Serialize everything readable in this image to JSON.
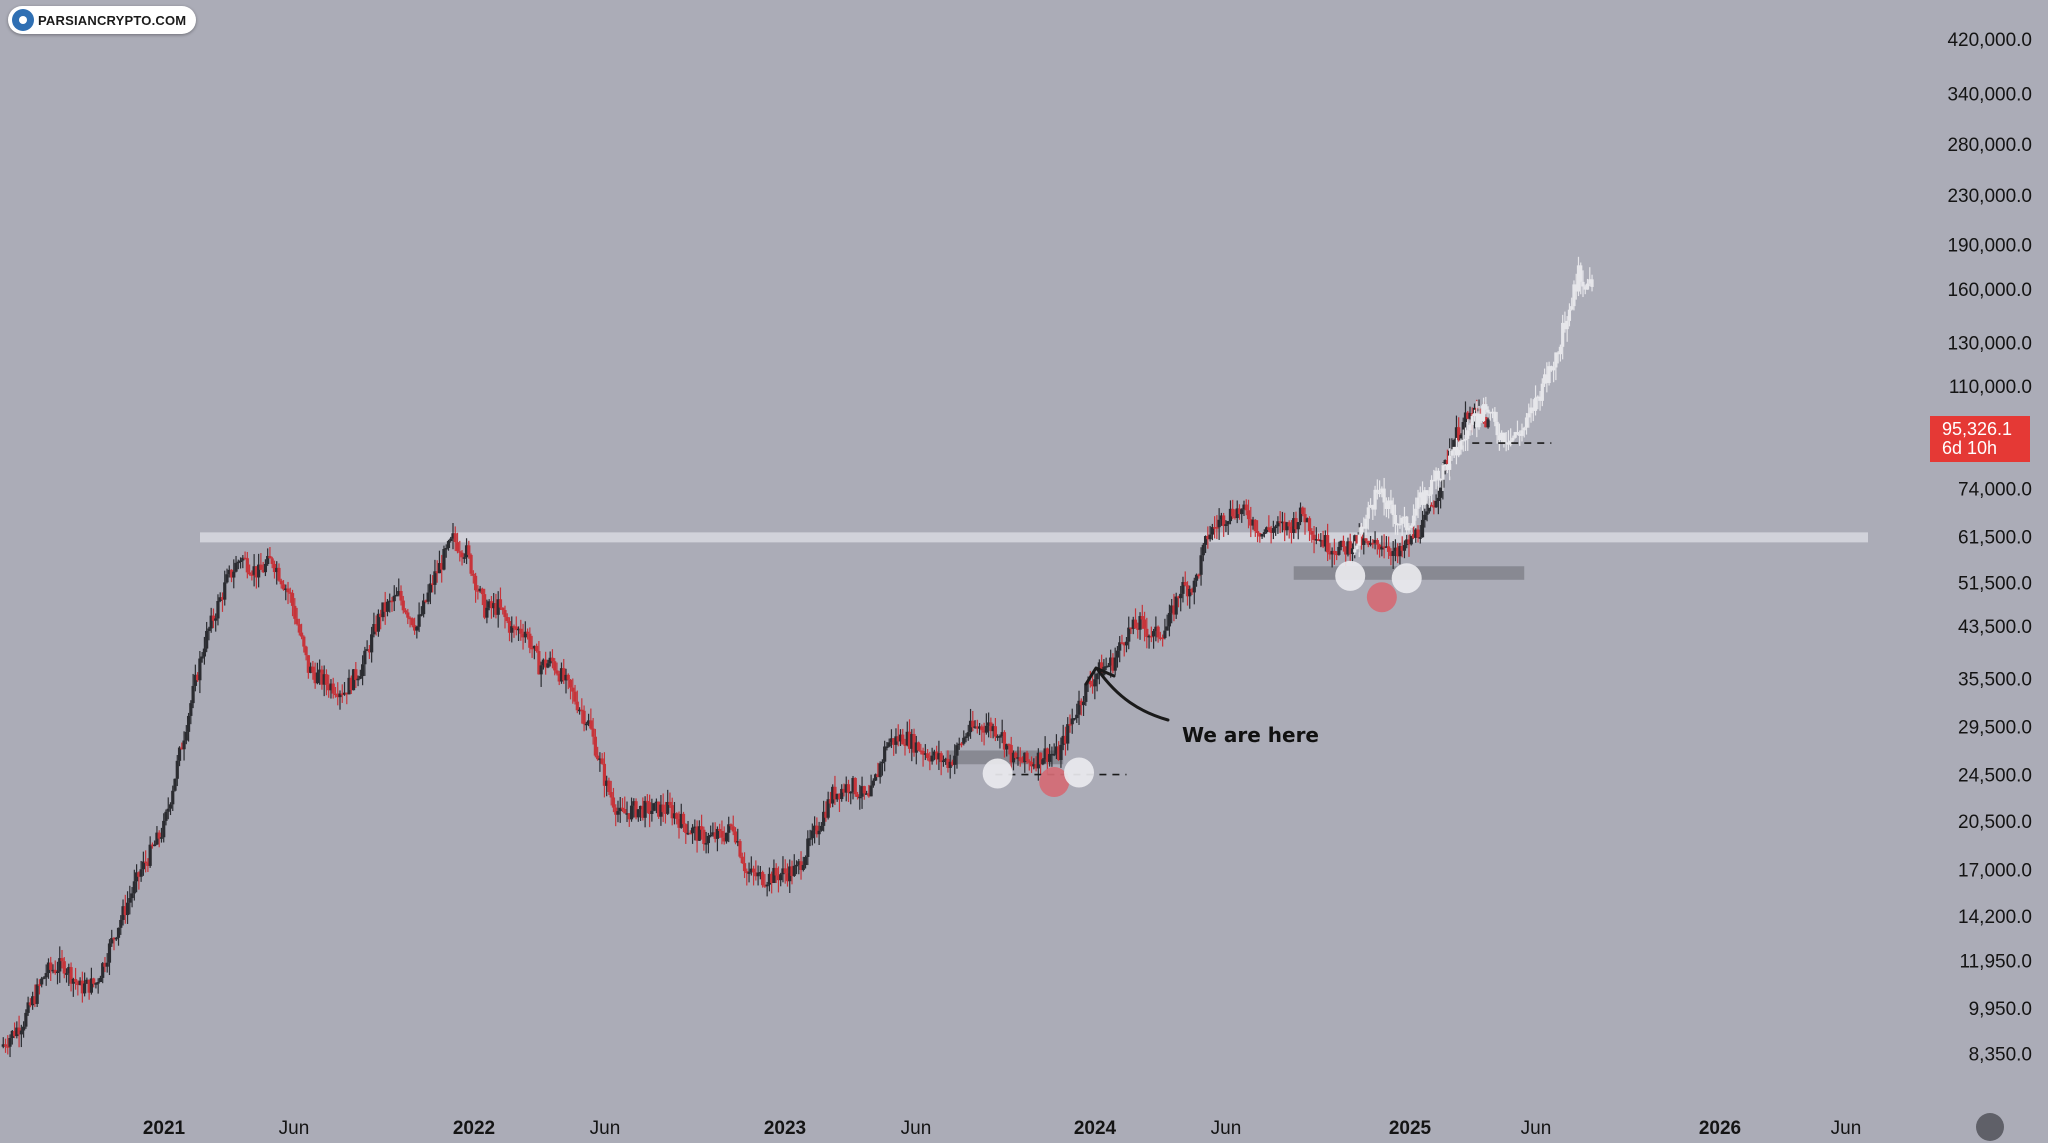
{
  "watermark": {
    "text": "PARSIANCRYPTO.COM",
    "icon": "parsiancrypto-logo-icon"
  },
  "annotation": {
    "text": "We are here"
  },
  "price_tag": {
    "price": "95,326.1",
    "countdown": "6d 10h",
    "color": "#e53935"
  },
  "colors": {
    "background": "#abacb7",
    "up_candle": "#2b2c31",
    "down_candle": "#c7343a",
    "projection_candle": "#e6e6ea",
    "resistance_line": "#d6d7de",
    "support_zone": "#7c7d85",
    "circle_white": "#e9e9ee",
    "circle_red": "#d46a74"
  },
  "chart_data": {
    "type": "candlestick",
    "scale": "log",
    "ylim": [
      7800,
      450000
    ],
    "y_ticks": [
      "420,000.0",
      "340,000.0",
      "280,000.0",
      "230,000.0",
      "190,000.0",
      "160,000.0",
      "130,000.0",
      "110,000.0",
      "74,000.0",
      "61,500.0",
      "51,500.0",
      "43,500.0",
      "35,500.0",
      "29,500.0",
      "24,500.0",
      "20,500.0",
      "17,000.0",
      "14,200.0",
      "11,950.0",
      "9,950.0",
      "8,350.0"
    ],
    "x_ticks": [
      "2021",
      "Jun",
      "2022",
      "Jun",
      "2023",
      "Jun",
      "2024",
      "Jun",
      "2025",
      "Jun",
      "2026",
      "Jun"
    ],
    "x_ticks_bold": [
      true,
      false,
      true,
      false,
      true,
      false,
      true,
      false,
      true,
      false,
      true,
      false
    ],
    "price_path": [
      [
        0,
        8600
      ],
      [
        10,
        9500
      ],
      [
        20,
        11500
      ],
      [
        28,
        11800
      ],
      [
        35,
        10800
      ],
      [
        42,
        11000
      ],
      [
        52,
        13800
      ],
      [
        62,
        17000
      ],
      [
        72,
        20000
      ],
      [
        82,
        30000
      ],
      [
        90,
        41000
      ],
      [
        100,
        52000
      ],
      [
        106,
        57000
      ],
      [
        114,
        53500
      ],
      [
        120,
        56500
      ],
      [
        128,
        49000
      ],
      [
        136,
        37000
      ],
      [
        144,
        35000
      ],
      [
        152,
        34000
      ],
      [
        160,
        37500
      ],
      [
        168,
        46000
      ],
      [
        176,
        49000
      ],
      [
        184,
        43500
      ],
      [
        192,
        53000
      ],
      [
        200,
        61000
      ],
      [
        206,
        58000
      ],
      [
        214,
        46500
      ],
      [
        220,
        47000
      ],
      [
        226,
        43000
      ],
      [
        232,
        43000
      ],
      [
        238,
        37500
      ],
      [
        244,
        38000
      ],
      [
        252,
        34000
      ],
      [
        260,
        30000
      ],
      [
        268,
        23500
      ],
      [
        274,
        21000
      ],
      [
        280,
        21500
      ],
      [
        288,
        21500
      ],
      [
        296,
        21500
      ],
      [
        304,
        20000
      ],
      [
        312,
        19200
      ],
      [
        320,
        19500
      ],
      [
        324,
        20200
      ],
      [
        330,
        16800
      ],
      [
        338,
        16500
      ],
      [
        346,
        16800
      ],
      [
        352,
        17000
      ],
      [
        360,
        19600
      ],
      [
        368,
        22800
      ],
      [
        376,
        23700
      ],
      [
        384,
        22200
      ],
      [
        392,
        27800
      ],
      [
        400,
        28500
      ],
      [
        408,
        27000
      ],
      [
        414,
        26200
      ],
      [
        420,
        25800
      ],
      [
        428,
        29200
      ],
      [
        436,
        29800
      ],
      [
        442,
        29100
      ],
      [
        448,
        26000
      ],
      [
        456,
        25800
      ],
      [
        462,
        26700
      ],
      [
        468,
        26600
      ],
      [
        474,
        30500
      ],
      [
        480,
        34300
      ],
      [
        486,
        36800
      ],
      [
        492,
        38000
      ],
      [
        498,
        42500
      ],
      [
        504,
        44000
      ],
      [
        510,
        42000
      ],
      [
        516,
        43500
      ],
      [
        522,
        50500
      ],
      [
        528,
        51000
      ],
      [
        534,
        62000
      ],
      [
        540,
        66000
      ],
      [
        546,
        68500
      ],
      [
        552,
        67000
      ],
      [
        558,
        62500
      ],
      [
        564,
        64000
      ],
      [
        570,
        64000
      ],
      [
        576,
        67500
      ],
      [
        582,
        62000
      ],
      [
        588,
        59500
      ],
      [
        594,
        58500
      ],
      [
        600,
        61000
      ],
      [
        606,
        59000
      ],
      [
        612,
        60500
      ],
      [
        618,
        57000
      ],
      [
        624,
        61000
      ],
      [
        630,
        65000
      ],
      [
        636,
        74000
      ],
      [
        642,
        89000
      ],
      [
        648,
        96500
      ],
      [
        654,
        99000
      ],
      [
        658,
        95326
      ]
    ],
    "projection_path": [
      [
        598,
        58000
      ],
      [
        602,
        62000
      ],
      [
        606,
        70000
      ],
      [
        610,
        73000
      ],
      [
        614,
        69000
      ],
      [
        618,
        66000
      ],
      [
        622,
        64500
      ],
      [
        628,
        71000
      ],
      [
        636,
        78000
      ],
      [
        644,
        86000
      ],
      [
        650,
        94000
      ],
      [
        654,
        98000
      ],
      [
        658,
        101000
      ],
      [
        662,
        93000
      ],
      [
        668,
        90000
      ],
      [
        674,
        94000
      ],
      [
        680,
        106000
      ],
      [
        686,
        118000
      ],
      [
        692,
        140000
      ],
      [
        698,
        170000
      ],
      [
        704,
        160000
      ]
    ],
    "resistance_level": 61500,
    "support_zones": [
      {
        "from": 418,
        "to": 470,
        "top": 27000,
        "bottom": 25600
      },
      {
        "from": 572,
        "to": 674,
        "top": 55000,
        "bottom": 52200
      }
    ],
    "dashed_levels": [
      {
        "from": 440,
        "to": 498,
        "value": 24600
      },
      {
        "from": 651,
        "to": 686,
        "value": 88500
      }
    ],
    "markers": [
      {
        "x": 441,
        "value": 24700,
        "color": "white"
      },
      {
        "x": 466,
        "value": 23900,
        "color": "red"
      },
      {
        "x": 477,
        "value": 24800,
        "color": "white"
      },
      {
        "x": 597,
        "value": 53000,
        "color": "white"
      },
      {
        "x": 611,
        "value": 48800,
        "color": "red"
      },
      {
        "x": 622,
        "value": 52500,
        "color": "white"
      }
    ]
  }
}
